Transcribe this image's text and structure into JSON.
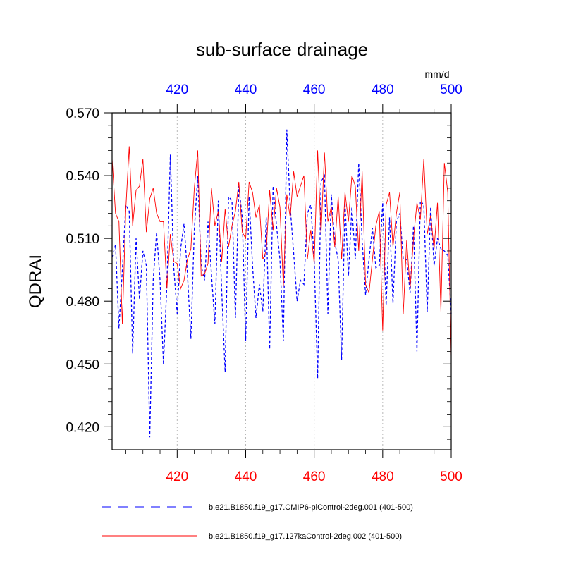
{
  "chart_data": {
    "type": "line",
    "title": "sub-surface drainage",
    "ylabel": "QDRAI",
    "units": "mm/d",
    "xlim": [
      401,
      500
    ],
    "ylim": [
      0.409,
      0.57
    ],
    "yticks": [
      0.42,
      0.45,
      0.48,
      0.51,
      0.54,
      0.57
    ],
    "ytick_labels": [
      "0.420",
      "0.450",
      "0.480",
      "0.510",
      "0.540",
      "0.570"
    ],
    "xticks": [
      420,
      440,
      460,
      480,
      500
    ],
    "xtick_labels": [
      "420",
      "440",
      "460",
      "480",
      "500"
    ],
    "bottom_tick_color": "#ff0000",
    "top_tick_color": "#0000ff",
    "grid": "vertical dotted at labeled x ticks",
    "x": [
      401,
      402,
      403,
      404,
      405,
      406,
      407,
      408,
      409,
      410,
      411,
      412,
      413,
      414,
      415,
      416,
      417,
      418,
      419,
      420,
      421,
      422,
      423,
      424,
      425,
      426,
      427,
      428,
      429,
      430,
      431,
      432,
      433,
      434,
      435,
      436,
      437,
      438,
      439,
      440,
      441,
      442,
      443,
      444,
      445,
      446,
      447,
      448,
      449,
      450,
      451,
      452,
      453,
      454,
      455,
      456,
      457,
      458,
      459,
      460,
      461,
      462,
      463,
      464,
      465,
      466,
      467,
      468,
      469,
      470,
      471,
      472,
      473,
      474,
      475,
      476,
      477,
      478,
      479,
      480,
      481,
      482,
      483,
      484,
      485,
      486,
      487,
      488,
      489,
      490,
      491,
      492,
      493,
      494,
      495,
      496,
      497,
      498,
      499,
      500
    ],
    "series": [
      {
        "name": "b.e21.B1850.f19_g17.CMIP6-piControl-2deg.001 (401-500)",
        "color": "#0000ff",
        "dash": "dashed",
        "values": [
          0.501,
          0.507,
          0.467,
          0.495,
          0.526,
          0.523,
          0.455,
          0.51,
          0.481,
          0.504,
          0.497,
          0.415,
          0.49,
          0.513,
          0.49,
          0.45,
          0.488,
          0.55,
          0.496,
          0.474,
          0.505,
          0.517,
          0.493,
          0.462,
          0.514,
          0.54,
          0.497,
          0.49,
          0.518,
          0.493,
          0.469,
          0.528,
          0.485,
          0.446,
          0.53,
          0.528,
          0.472,
          0.535,
          0.52,
          0.461,
          0.53,
          0.497,
          0.472,
          0.488,
          0.475,
          0.52,
          0.457,
          0.535,
          0.516,
          0.5,
          0.461,
          0.562,
          0.525,
          0.503,
          0.48,
          0.49,
          0.488,
          0.522,
          0.526,
          0.5,
          0.443,
          0.537,
          0.54,
          0.474,
          0.531,
          0.508,
          0.5,
          0.452,
          0.527,
          0.492,
          0.525,
          0.5,
          0.546,
          0.509,
          0.483,
          0.5,
          0.515,
          0.496,
          0.497,
          0.527,
          0.478,
          0.52,
          0.479,
          0.518,
          0.522,
          0.5,
          0.5,
          0.484,
          0.516,
          0.456,
          0.528,
          0.526,
          0.475,
          0.525,
          0.497,
          0.51,
          0.505,
          0.504,
          0.502,
          0.474
        ]
      },
      {
        "name": "b.e21.B1850.f19_g17.127kaControl-2deg.002 (401-500)",
        "color": "#ff0000",
        "dash": "solid",
        "values": [
          0.548,
          0.522,
          0.518,
          0.469,
          0.524,
          0.554,
          0.516,
          0.533,
          0.535,
          0.548,
          0.513,
          0.529,
          0.534,
          0.522,
          0.518,
          0.518,
          0.486,
          0.512,
          0.499,
          0.498,
          0.486,
          0.49,
          0.5,
          0.505,
          0.534,
          0.552,
          0.492,
          0.493,
          0.498,
          0.534,
          0.516,
          0.523,
          0.499,
          0.524,
          0.506,
          0.516,
          0.523,
          0.537,
          0.513,
          0.51,
          0.537,
          0.532,
          0.52,
          0.526,
          0.5,
          0.504,
          0.533,
          0.514,
          0.534,
          0.525,
          0.487,
          0.531,
          0.52,
          0.542,
          0.53,
          0.535,
          0.54,
          0.5,
          0.514,
          0.498,
          0.552,
          0.512,
          0.551,
          0.518,
          0.525,
          0.506,
          0.53,
          0.5,
          0.532,
          0.518,
          0.54,
          0.535,
          0.504,
          0.542,
          0.488,
          0.484,
          0.5,
          0.516,
          0.523,
          0.466,
          0.526,
          0.532,
          0.506,
          0.522,
          0.532,
          0.474,
          0.509,
          0.486,
          0.51,
          0.527,
          0.519,
          0.548,
          0.512,
          0.521,
          0.505,
          0.527,
          0.475,
          0.546,
          0.532,
          0.453
        ]
      }
    ]
  }
}
